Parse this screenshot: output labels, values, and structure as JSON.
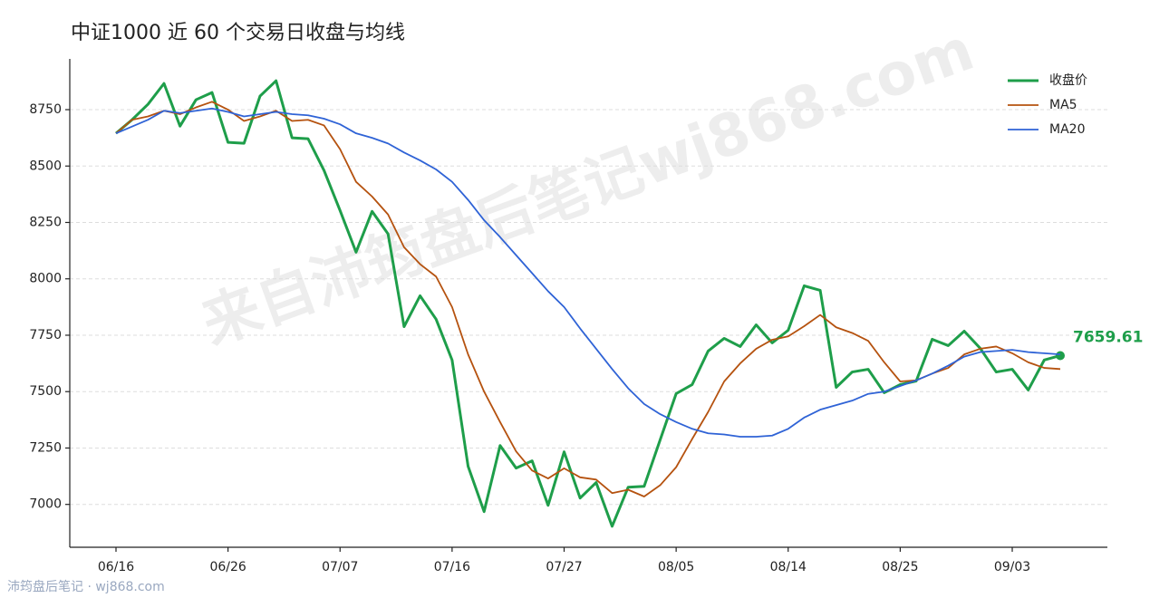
{
  "chart_data": {
    "type": "line",
    "title": "中证1000 近 60 个交易日收盘与均线",
    "watermark": "来自沛筠盘后笔记wj868.com",
    "footer": "沛筠盘后笔记 · wj868.com",
    "categories": [
      "06/16",
      null,
      null,
      null,
      null,
      null,
      null,
      "06/26",
      null,
      null,
      null,
      null,
      null,
      null,
      "07/07",
      null,
      null,
      null,
      null,
      null,
      null,
      "07/16",
      null,
      null,
      null,
      null,
      null,
      null,
      "07/27",
      null,
      null,
      null,
      null,
      null,
      null,
      "08/05",
      null,
      null,
      null,
      null,
      null,
      null,
      "08/14",
      null,
      null,
      null,
      null,
      null,
      null,
      "08/25",
      null,
      null,
      null,
      null,
      null,
      null,
      "09/03",
      null,
      null,
      null
    ],
    "ylim": [
      6810,
      8975
    ],
    "yticks": [
      7000,
      7250,
      7500,
      7750,
      8000,
      8250,
      8500,
      8750
    ],
    "grid": true,
    "legend": "upper right",
    "series": [
      {
        "name": "收盘价",
        "color": "#1e9e4a",
        "width": 3,
        "label_last": true,
        "values": [
          8645,
          8705,
          8774,
          8866,
          8677,
          8794,
          8826,
          8605,
          8601,
          8810,
          8878,
          8625,
          8621,
          8480,
          8303,
          8118,
          8299,
          8199,
          7788,
          7925,
          7821,
          7640,
          7169,
          6968,
          7261,
          7161,
          7193,
          6996,
          7233,
          7028,
          7097,
          6903,
          7076,
          7080,
          7286,
          7491,
          7531,
          7680,
          7736,
          7700,
          7796,
          7716,
          7772,
          7969,
          7949,
          7519,
          7587,
          7599,
          7495,
          7531,
          7547,
          7732,
          7704,
          7768,
          7692,
          7587,
          7599,
          7507,
          7640,
          7659.61
        ]
      },
      {
        "name": "MA5",
        "color": "#b5520f",
        "width": 1.8,
        "values": [
          8645,
          8705,
          8720,
          8745,
          8730,
          8760,
          8785,
          8750,
          8700,
          8720,
          8745,
          8700,
          8705,
          8680,
          8575,
          8430,
          8365,
          8285,
          8140,
          8065,
          8010,
          7875,
          7665,
          7500,
          7365,
          7235,
          7150,
          7115,
          7160,
          7120,
          7110,
          7050,
          7065,
          7035,
          7085,
          7165,
          7290,
          7410,
          7545,
          7625,
          7690,
          7730,
          7745,
          7790,
          7840,
          7785,
          7760,
          7725,
          7630,
          7545,
          7550,
          7580,
          7605,
          7665,
          7690,
          7700,
          7670,
          7630,
          7605,
          7600
        ]
      },
      {
        "name": "MA20",
        "color": "#2f63d6",
        "width": 1.8,
        "values": [
          8645,
          8675,
          8705,
          8745,
          8735,
          8745,
          8755,
          8740,
          8720,
          8730,
          8740,
          8730,
          8725,
          8710,
          8685,
          8645,
          8625,
          8600,
          8560,
          8525,
          8485,
          8430,
          8350,
          8260,
          8185,
          8105,
          8025,
          7945,
          7875,
          7780,
          7690,
          7600,
          7515,
          7445,
          7400,
          7365,
          7335,
          7315,
          7310,
          7300,
          7300,
          7305,
          7335,
          7385,
          7420,
          7440,
          7460,
          7490,
          7500,
          7525,
          7550,
          7580,
          7615,
          7655,
          7675,
          7680,
          7685,
          7675,
          7670,
          7665
        ]
      }
    ]
  }
}
